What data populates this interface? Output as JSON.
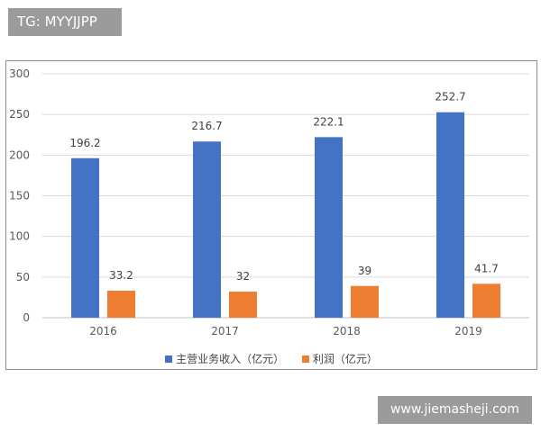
{
  "watermark_top": "TG: MYYJJPP",
  "watermark_bottom": "www.jiemasheji.com",
  "chart_data": {
    "type": "bar",
    "categories": [
      "2016",
      "2017",
      "2018",
      "2019"
    ],
    "series": [
      {
        "name": "主营业务收入（亿元）",
        "values": [
          196.2,
          216.7,
          222.1,
          252.7
        ],
        "labels": [
          "196.2",
          "216.7",
          "222.1",
          "252.7"
        ],
        "color": "#4472c4"
      },
      {
        "name": "利润（亿元）",
        "values": [
          33.2,
          32,
          39,
          41.7
        ],
        "labels": [
          "33.2",
          "32",
          "39",
          "41.7"
        ],
        "color": "#ed7d31"
      }
    ],
    "ylim": [
      0,
      300
    ],
    "yticks": [
      "0",
      "50",
      "100",
      "150",
      "200",
      "250",
      "300"
    ],
    "grid": true,
    "legend_position": "bottom"
  }
}
